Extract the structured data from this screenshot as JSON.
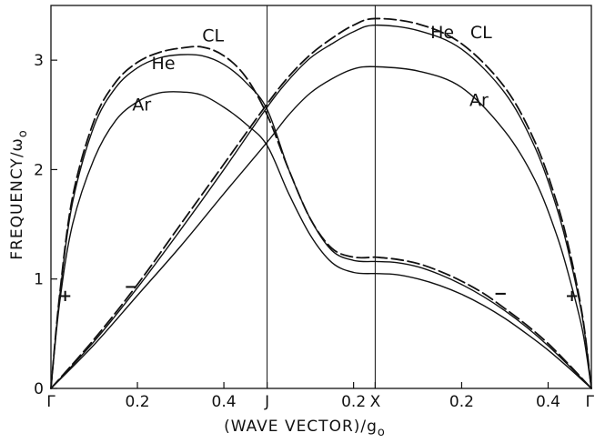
{
  "chart_data": {
    "type": "line",
    "title": "",
    "xlabel": "(WAVE VECTOR)/g",
    "xlabel_subscript": "o",
    "ylabel": "FREQUENCY/ω",
    "ylabel_subscript": "o",
    "ylim": [
      0,
      3.5
    ],
    "y_ticks": [
      0,
      1,
      2,
      3
    ],
    "x_ticks": [
      {
        "pos": 0.0,
        "label": "Γ"
      },
      {
        "pos": 0.2,
        "label": "0.2"
      },
      {
        "pos": 0.4,
        "label": "0.4"
      },
      {
        "pos": 0.5,
        "label": "J"
      },
      {
        "pos": 0.7,
        "label": "0.2"
      },
      {
        "pos": 0.75,
        "label": "X"
      },
      {
        "pos": 0.95,
        "label": "0.2"
      },
      {
        "pos": 1.15,
        "label": "0.4"
      },
      {
        "pos": 1.25,
        "label": "Γ"
      }
    ],
    "xlim": [
      0,
      1.25
    ],
    "vertical_lines": [
      0.5,
      0.75
    ],
    "grid": false,
    "series": [
      {
        "name": "CL",
        "style": "dashed",
        "x": [
          0,
          0.02,
          0.05,
          0.1,
          0.15,
          0.2,
          0.25,
          0.3,
          0.35,
          0.4,
          0.45,
          0.5,
          0.55,
          0.6,
          0.65,
          0.7,
          0.75
        ],
        "y": [
          0,
          0.85,
          1.75,
          2.45,
          2.8,
          2.98,
          3.07,
          3.11,
          3.12,
          3.04,
          2.85,
          2.5,
          2.0,
          1.55,
          1.28,
          1.2,
          1.2
        ]
      },
      {
        "name": "He",
        "style": "solid",
        "x": [
          0,
          0.02,
          0.05,
          0.1,
          0.15,
          0.2,
          0.25,
          0.3,
          0.35,
          0.4,
          0.45,
          0.5,
          0.55,
          0.6,
          0.65,
          0.7,
          0.75
        ],
        "y": [
          0,
          0.83,
          1.7,
          2.4,
          2.75,
          2.93,
          3.02,
          3.05,
          3.04,
          2.96,
          2.8,
          2.55,
          2.0,
          1.55,
          1.26,
          1.17,
          1.16
        ]
      },
      {
        "name": "Ar",
        "style": "solid",
        "x": [
          0,
          0.02,
          0.05,
          0.1,
          0.15,
          0.2,
          0.25,
          0.3,
          0.35,
          0.4,
          0.45,
          0.5,
          0.55,
          0.6,
          0.65,
          0.7,
          0.75
        ],
        "y": [
          0,
          0.78,
          1.5,
          2.1,
          2.45,
          2.62,
          2.7,
          2.71,
          2.68,
          2.57,
          2.42,
          2.22,
          1.78,
          1.4,
          1.15,
          1.06,
          1.05
        ]
      },
      {
        "name": "CL",
        "style": "dashed",
        "x": [
          0,
          0.1,
          0.2,
          0.3,
          0.4,
          0.5,
          0.55,
          0.6,
          0.65,
          0.7,
          0.75,
          0.85,
          0.95,
          1.05,
          1.12,
          1.17,
          1.2,
          1.23,
          1.25
        ],
        "y": [
          0,
          0.45,
          0.95,
          1.5,
          2.05,
          2.6,
          2.85,
          3.05,
          3.2,
          3.32,
          3.38,
          3.33,
          3.15,
          2.75,
          2.25,
          1.7,
          1.25,
          0.65,
          0
        ]
      },
      {
        "name": "He",
        "style": "solid",
        "x": [
          0,
          0.1,
          0.2,
          0.3,
          0.4,
          0.5,
          0.55,
          0.6,
          0.65,
          0.7,
          0.75,
          0.85,
          0.95,
          1.05,
          1.12,
          1.17,
          1.2,
          1.23,
          1.25
        ],
        "y": [
          0,
          0.43,
          0.92,
          1.45,
          2.0,
          2.57,
          2.82,
          3.02,
          3.15,
          3.26,
          3.32,
          3.27,
          3.1,
          2.7,
          2.2,
          1.65,
          1.2,
          0.63,
          0
        ]
      },
      {
        "name": "Ar",
        "style": "solid",
        "x": [
          0,
          0.1,
          0.2,
          0.3,
          0.4,
          0.5,
          0.55,
          0.6,
          0.65,
          0.7,
          0.75,
          0.85,
          0.95,
          1.05,
          1.12,
          1.17,
          1.2,
          1.23,
          1.25
        ],
        "y": [
          0,
          0.4,
          0.85,
          1.3,
          1.78,
          2.25,
          2.5,
          2.7,
          2.83,
          2.92,
          2.94,
          2.9,
          2.75,
          2.35,
          1.9,
          1.4,
          1.0,
          0.52,
          0
        ]
      },
      {
        "name": "",
        "style": "solid",
        "x": [
          0.75,
          0.8,
          0.85,
          0.9,
          0.95,
          1.0,
          1.05,
          1.1,
          1.15,
          1.2,
          1.25
        ],
        "y": [
          1.16,
          1.15,
          1.11,
          1.04,
          0.95,
          0.84,
          0.71,
          0.56,
          0.39,
          0.2,
          0
        ]
      },
      {
        "name": "",
        "style": "dashed",
        "x": [
          0.75,
          0.8,
          0.85,
          0.9,
          0.95,
          1.0,
          1.05,
          1.1,
          1.15,
          1.2,
          1.25
        ],
        "y": [
          1.2,
          1.18,
          1.14,
          1.07,
          0.98,
          0.87,
          0.73,
          0.58,
          0.41,
          0.21,
          0
        ]
      },
      {
        "name": "",
        "style": "solid",
        "x": [
          0.75,
          0.8,
          0.85,
          0.9,
          0.95,
          1.0,
          1.05,
          1.1,
          1.15,
          1.2,
          1.25
        ],
        "y": [
          1.05,
          1.04,
          1.0,
          0.94,
          0.86,
          0.76,
          0.64,
          0.5,
          0.35,
          0.18,
          0
        ]
      }
    ],
    "annotations": [
      {
        "text": "CL",
        "x": 0.375,
        "y": 3.17
      },
      {
        "text": "He",
        "x": 0.26,
        "y": 2.92
      },
      {
        "text": "Ar",
        "x": 0.21,
        "y": 2.54
      },
      {
        "text": "He",
        "x": 0.905,
        "y": 3.2
      },
      {
        "text": "CL",
        "x": 0.995,
        "y": 3.2
      },
      {
        "text": "Ar",
        "x": 0.99,
        "y": 2.58
      },
      {
        "text": "+",
        "x": 0.033,
        "y": 0.8
      },
      {
        "text": "−",
        "x": 0.185,
        "y": 0.88
      },
      {
        "text": "−",
        "x": 1.04,
        "y": 0.82
      },
      {
        "text": "+",
        "x": 1.205,
        "y": 0.8
      }
    ],
    "sign_labels": [
      "+",
      "−"
    ]
  }
}
